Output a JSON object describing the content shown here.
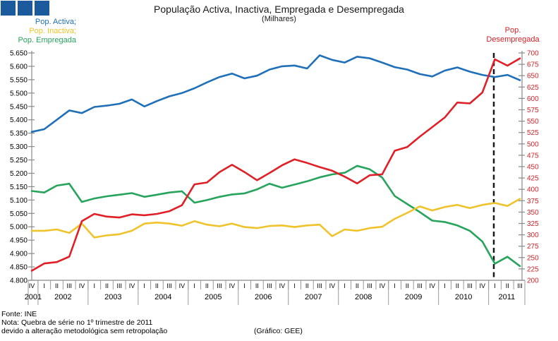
{
  "title": "População Activa, Inactiva, Empregada e Desempregada",
  "subtitle": "(Milhares)",
  "logo": {
    "color": "#1B5A9C",
    "squares": 3
  },
  "legend": {
    "items": [
      {
        "label": "Pop. Activa;",
        "color": "#1F70B8"
      },
      {
        "label": "Pop. Inactiva;",
        "color": "#EFC32C"
      },
      {
        "label": "Pop. Empregada",
        "color": "#27A45C"
      }
    ]
  },
  "right_axis_label": {
    "line1": "Pop.",
    "line2": "Desempregada",
    "color": "#D42226"
  },
  "footer": {
    "source": "Fonte: INE",
    "note_line1": "Nota: Quebra de série no 1º trimestre de 2011",
    "note_line2": "devido a alteração metodológica sem retropolação",
    "credit": "(Gráfico: GEE)"
  },
  "chart_data": {
    "type": "line",
    "title": "População Activa, Inactiva, Empregada e Desempregada (Milhares)",
    "grid": "off",
    "legend_position": "top-left",
    "x_quarters": [
      "IV",
      "I",
      "II",
      "III",
      "IV",
      "I",
      "II",
      "III",
      "IV",
      "I",
      "II",
      "III",
      "IV",
      "I",
      "II",
      "III",
      "IV",
      "I",
      "II",
      "III",
      "IV",
      "I",
      "II",
      "III",
      "IV",
      "I",
      "II",
      "III",
      "IV",
      "I",
      "II",
      "III",
      "IV",
      "I",
      "II",
      "III",
      "IV",
      "I",
      "II",
      "III"
    ],
    "x_years": [
      {
        "label": "2001",
        "quarters": 1
      },
      {
        "label": "2002",
        "quarters": 4
      },
      {
        "label": "2003",
        "quarters": 4
      },
      {
        "label": "2004",
        "quarters": 4
      },
      {
        "label": "2005",
        "quarters": 4
      },
      {
        "label": "2006",
        "quarters": 4
      },
      {
        "label": "2007",
        "quarters": 4
      },
      {
        "label": "2008",
        "quarters": 4
      },
      {
        "label": "2009",
        "quarters": 4
      },
      {
        "label": "2010",
        "quarters": 4
      },
      {
        "label": "2011",
        "quarters": 3
      }
    ],
    "left_axis": {
      "min": 4800,
      "max": 5650,
      "step": 50,
      "color": "#000000",
      "tick_labels": [
        "5.650",
        "5.600",
        "5.550",
        "5.500",
        "5.450",
        "5.400",
        "5.350",
        "5.300",
        "5.250",
        "5.200",
        "5.150",
        "5.100",
        "5.050",
        "5.000",
        "4.950",
        "4.900",
        "4.850",
        "4.800"
      ]
    },
    "right_axis": {
      "min": 200,
      "max": 700,
      "step": 25,
      "color": "#D42226",
      "tick_labels": [
        "700",
        "675",
        "650",
        "625",
        "600",
        "575",
        "550",
        "525",
        "500",
        "475",
        "450",
        "425",
        "400",
        "375",
        "350",
        "325",
        "300",
        "275",
        "250",
        "225",
        "200"
      ]
    },
    "series": [
      {
        "name": "Pop. Activa",
        "axis": "left",
        "color": "#1F70B8",
        "values": [
          5355,
          5365,
          5400,
          5435,
          5425,
          5448,
          5453,
          5460,
          5476,
          5450,
          5470,
          5488,
          5500,
          5518,
          5540,
          5560,
          5573,
          5555,
          5565,
          5588,
          5600,
          5603,
          5592,
          5641,
          5624,
          5614,
          5636,
          5630,
          5614,
          5597,
          5588,
          5571,
          5562,
          5584,
          5596,
          5580,
          5568,
          5560,
          5568,
          5548
        ]
      },
      {
        "name": "Pop. Empregada",
        "axis": "left",
        "color": "#27A45C",
        "values": [
          5134,
          5128,
          5154,
          5161,
          5093,
          5106,
          5114,
          5120,
          5126,
          5112,
          5120,
          5128,
          5133,
          5090,
          5100,
          5112,
          5121,
          5125,
          5140,
          5161,
          5146,
          5158,
          5170,
          5185,
          5196,
          5202,
          5228,
          5215,
          5184,
          5115,
          5085,
          5055,
          5023,
          5018,
          5005,
          4985,
          4945,
          4862,
          4888,
          4853
        ]
      },
      {
        "name": "Pop. Inactiva",
        "axis": "left",
        "color": "#EFC32C",
        "values": [
          4985,
          4985,
          4990,
          4977,
          5012,
          4960,
          4968,
          4972,
          4985,
          5012,
          5016,
          5012,
          5004,
          5021,
          5008,
          5002,
          5012,
          4999,
          4995,
          5003,
          5005,
          4999,
          5005,
          5008,
          4965,
          4990,
          4985,
          4995,
          5000,
          5030,
          5052,
          5076,
          5061,
          5074,
          5082,
          5070,
          5082,
          5089,
          5078,
          5104
        ]
      },
      {
        "name": "Pop. Desempregada",
        "axis": "right",
        "color": "#E02026",
        "values": [
          221,
          237,
          240,
          252,
          330,
          346,
          340,
          338,
          345,
          343,
          346,
          352,
          365,
          411,
          415,
          438,
          454,
          438,
          420,
          436,
          453,
          466,
          458,
          449,
          441,
          428,
          413,
          431,
          433,
          485,
          493,
          516,
          537,
          558,
          591,
          589,
          613,
          686,
          672,
          688
        ]
      }
    ],
    "break_line": {
      "at_quarter_index": 37,
      "label_context": "Quebra de série no 1º trimestre de 2011",
      "style": "dashed",
      "color": "#1a1a1a"
    }
  }
}
